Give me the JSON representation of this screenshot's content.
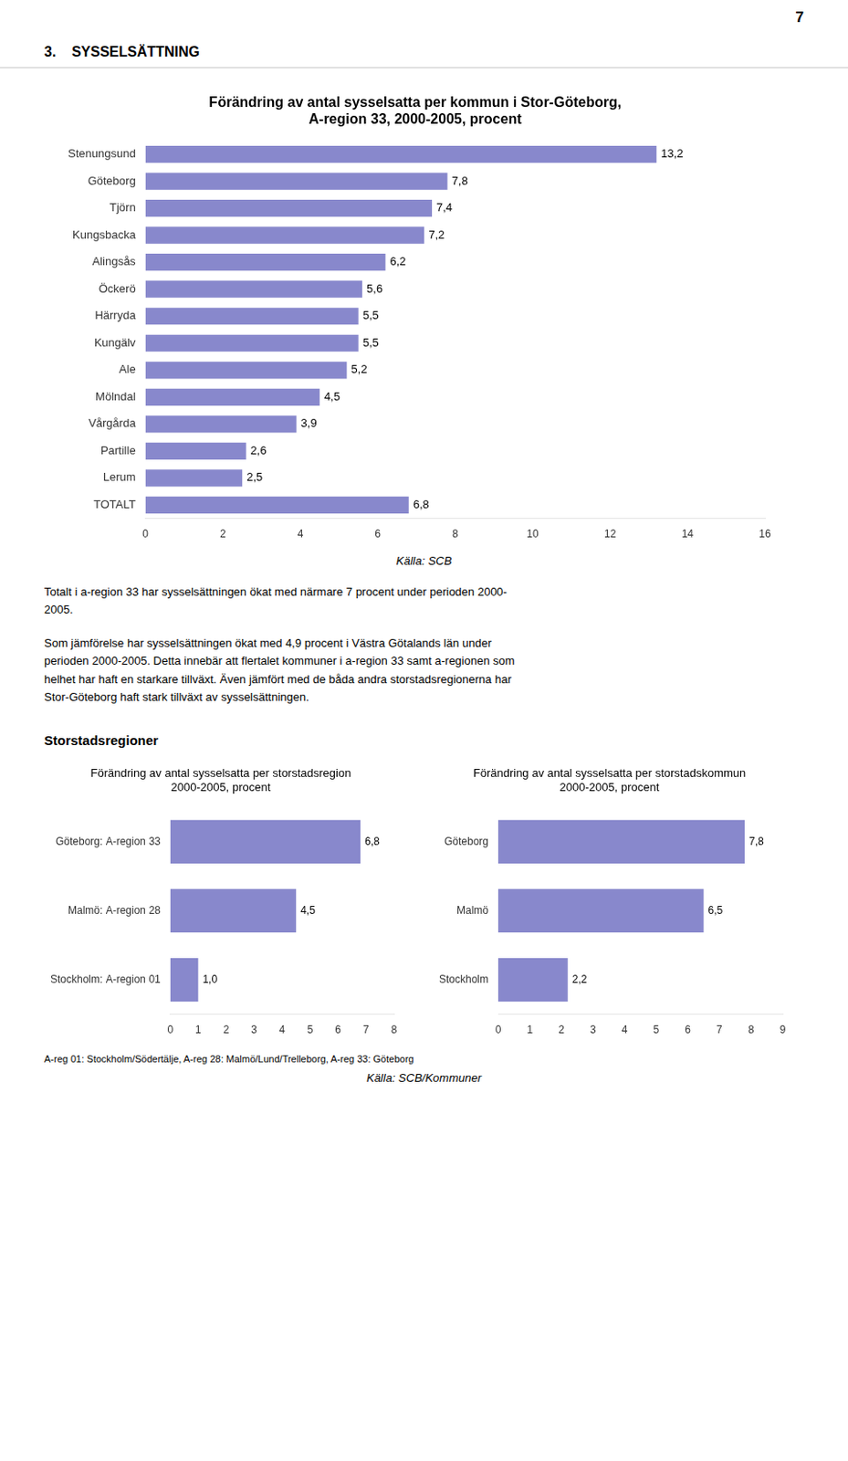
{
  "page_number": "7",
  "section_header": "3.    SYSSELSÄTTNING",
  "body_text": [
    "Totalt i a-region 33 har sysselsättningen ökat med närmare 7 procent under perioden 2000-\n2005.",
    "Som jämförelse har sysselsättningen ökat med 4,9 procent i Västra Götalands län under\nperioden 2000-2005. Detta innebär att flertalet kommuner i a-region 33 samt a-regionen som\nhelhet har haft en starkare tillväxt. Även jämfört med de båda andra storstadsregionerna har\nStor-Göteborg haft stark tillväxt av sysselsättningen."
  ],
  "heading": "Storstadsregioner",
  "footnote": "A-reg 01: Stockholm/Södertälje, A-reg 28: Malmö/Lund/Trelleborg, A-reg 33: Göteborg",
  "source": "Källa: SCB/Kommuner",
  "chart_data": [
    {
      "type": "bar",
      "orientation": "horizontal",
      "title": "Förändring av antal sysselsatta per kommun i Stor-Göteborg,\nA-region 33, 2000-2005, procent",
      "categories": [
        "Stenungsund",
        "Göteborg",
        "Tjörn",
        "Kungsbacka",
        "Alingsås",
        "Öckerö",
        "Härryda",
        "Kungälv",
        "Ale",
        "Mölndal",
        "Vårgårda",
        "Partille",
        "Lerum",
        "TOTALT"
      ],
      "values": [
        13.2,
        7.8,
        7.4,
        7.2,
        6.2,
        5.6,
        5.5,
        5.5,
        5.2,
        4.5,
        3.9,
        2.6,
        2.5,
        6.8
      ],
      "value_labels": [
        "13,2",
        "7,8",
        "7,4",
        "7,2",
        "6,2",
        "5,6",
        "5,5",
        "5,5",
        "5,2",
        "4,5",
        "3,9",
        "2,6",
        "2,5",
        "6,8"
      ],
      "color": "#8888cc",
      "xlim": [
        0,
        16
      ],
      "xticks": [
        0,
        2,
        4,
        6,
        8,
        10,
        12,
        14,
        16
      ],
      "grid": false,
      "data_labels": true,
      "source": "Källa: SCB"
    },
    {
      "type": "bar",
      "orientation": "horizontal",
      "title": "Förändring av antal sysselsatta per storstadsregion\n2000-2005, procent",
      "categories": [
        "Göteborg: A-region 33",
        "Malmö: A-region 28",
        "Stockholm: A-region 01"
      ],
      "values": [
        6.8,
        4.5,
        1.0
      ],
      "value_labels": [
        "6,8",
        "4,5",
        "1,0"
      ],
      "color": "#8888cc",
      "xlim": [
        0,
        8
      ],
      "xticks": [
        0,
        1,
        2,
        3,
        4,
        5,
        6,
        7,
        8
      ],
      "grid": false,
      "data_labels": true
    },
    {
      "type": "bar",
      "orientation": "horizontal",
      "title": "Förändring av antal sysselsatta per storstadskommun\n2000-2005, procent",
      "categories": [
        "Göteborg",
        "Malmö",
        "Stockholm"
      ],
      "values": [
        7.8,
        6.5,
        2.2
      ],
      "value_labels": [
        "7,8",
        "6,5",
        "2,2"
      ],
      "color": "#8888cc",
      "xlim": [
        0,
        9
      ],
      "xticks": [
        0,
        1,
        2,
        3,
        4,
        5,
        6,
        7,
        8,
        9
      ],
      "grid": false,
      "data_labels": true
    }
  ]
}
